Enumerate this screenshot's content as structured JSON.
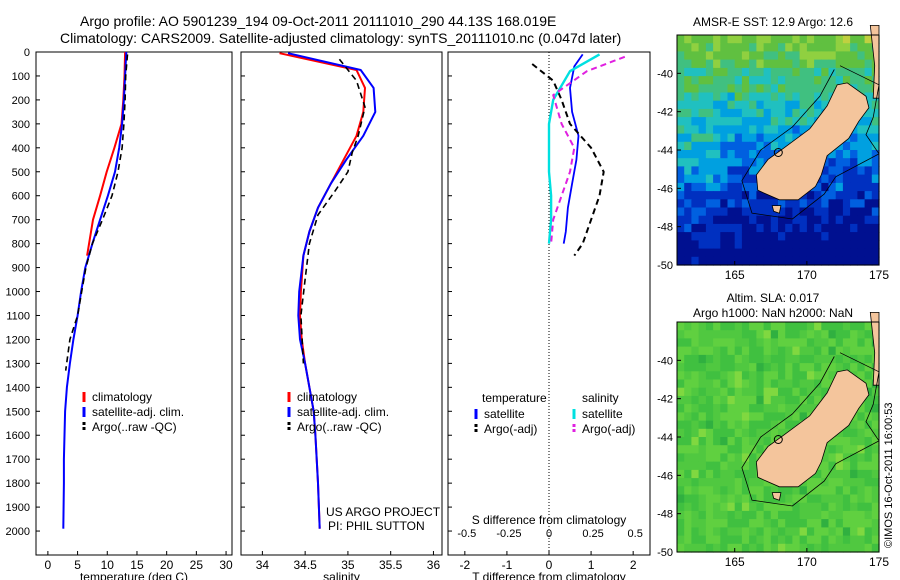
{
  "header": {
    "line1": "Argo profile: AO 5901239_194 09-Oct-2011 20111010_290 44.13S 168.019E",
    "line2": "Climatology: CARS2009. Satellite-adjusted climatology: synTS_20111010.nc (0.047d later)"
  },
  "colors": {
    "climatology": "#ff0000",
    "satellite": "#0000ff",
    "argo": "#000000",
    "sal_satellite": "#00e0e0",
    "sal_argo": "#e020e0",
    "land": "#f4c59c"
  },
  "credit": {
    "project": "US ARGO PROJECT",
    "pi": "PI: PHIL SUTTON",
    "vertical": "©IMOS 16-Oct-2011 16:00:53"
  },
  "chart_data": [
    {
      "type": "line",
      "xlabel": "temperature (deg C)",
      "xlim": [
        -2,
        31
      ],
      "xticks": [
        "0",
        "5",
        "10",
        "15",
        "20",
        "25",
        "30"
      ],
      "ylim": [
        0,
        2100
      ],
      "yticks": [
        "0",
        "100",
        "200",
        "300",
        "400",
        "500",
        "600",
        "700",
        "800",
        "900",
        "1000",
        "1100",
        "1200",
        "1300",
        "1400",
        "1500",
        "1600",
        "1700",
        "1800",
        "1900",
        "2000"
      ],
      "legend": [
        "climatology",
        "satellite-adj. clim.",
        "Argo(..raw -QC)"
      ],
      "series": [
        {
          "name": "climatology",
          "x": [
            13.0,
            12.9,
            12.7,
            12.4,
            11.2,
            9.9,
            8.8,
            7.6,
            6.6
          ],
          "y": [
            0,
            100,
            200,
            300,
            400,
            500,
            600,
            700,
            850
          ]
        },
        {
          "name": "satellite-adj. clim.",
          "x": [
            13.2,
            13.0,
            12.8,
            12.5,
            12.0,
            11.3,
            10.1,
            8.8,
            7.5,
            6.3,
            5.6,
            5.0,
            4.3,
            3.7,
            3.2,
            2.9,
            2.8,
            2.7,
            2.7,
            2.6
          ],
          "y": [
            0,
            100,
            200,
            300,
            400,
            500,
            600,
            700,
            800,
            900,
            1000,
            1100,
            1200,
            1300,
            1400,
            1500,
            1600,
            1700,
            1800,
            1990
          ]
        },
        {
          "name": "Argo(..raw -QC)",
          "x": [
            13.4,
            13.1,
            13.0,
            12.8,
            12.5,
            11.8,
            10.8,
            9.2,
            7.5,
            6.4,
            5.7,
            5.0,
            3.7,
            3.0
          ],
          "y": [
            10,
            100,
            200,
            300,
            400,
            500,
            600,
            700,
            800,
            900,
            1000,
            1100,
            1200,
            1330
          ]
        }
      ]
    },
    {
      "type": "line",
      "xlabel": "salinity",
      "xlim": [
        33.75,
        36.1
      ],
      "xticks": [
        "34",
        "34.5",
        "35",
        "35.5",
        "36"
      ],
      "ylim": [
        0,
        2100
      ],
      "legend": [
        "climatology",
        "satellite-adj. clim.",
        "Argo(..raw -QC)"
      ],
      "series": [
        {
          "name": "climatology",
          "x": [
            34.2,
            35.1,
            35.2,
            35.18,
            35.1,
            34.95,
            34.8,
            34.65,
            34.55,
            34.48,
            34.45,
            34.44,
            34.46,
            34.5,
            34.55,
            34.6,
            34.62,
            34.65,
            34.67
          ],
          "y": [
            5,
            75,
            150,
            250,
            350,
            450,
            550,
            650,
            750,
            850,
            1000,
            1100,
            1200,
            1300,
            1400,
            1500,
            1600,
            1800,
            1990
          ]
        },
        {
          "name": "satellite-adj. clim.",
          "x": [
            34.3,
            35.15,
            35.3,
            35.32,
            35.18,
            34.98,
            34.8,
            34.65,
            34.55,
            34.48,
            34.43,
            34.42,
            34.44,
            34.5,
            34.55,
            34.6,
            34.62,
            34.65,
            34.67
          ],
          "y": [
            5,
            75,
            150,
            250,
            350,
            450,
            550,
            650,
            750,
            850,
            1000,
            1100,
            1200,
            1300,
            1400,
            1500,
            1600,
            1800,
            1990
          ]
        },
        {
          "name": "Argo(..raw -QC)",
          "x": [
            34.9,
            35.1,
            35.2,
            35.12,
            35.05,
            35.0,
            34.85,
            34.65,
            34.55,
            34.5,
            34.45,
            34.48
          ],
          "y": [
            30,
            120,
            230,
            350,
            420,
            500,
            580,
            680,
            800,
            950,
            1100,
            1300
          ]
        }
      ]
    },
    {
      "type": "line",
      "xlabel": "T difference from climatology",
      "xlabel2": "S difference from climatology",
      "xlim": [
        -2.4,
        2.4
      ],
      "xticks": [
        "-2",
        "-1",
        "0",
        "1",
        "2"
      ],
      "xticks2": [
        "-0.5",
        "-0.25",
        "0",
        "0.25",
        "0.5"
      ],
      "ylim": [
        0,
        2100
      ],
      "legend_left_title": "temperature",
      "legend_right_title": "salinity",
      "legend_left": [
        "satellite",
        "Argo(-adj)"
      ],
      "legend_right": [
        "satellite",
        "Argo(-adj)"
      ],
      "series": [
        {
          "name": "temperature satellite",
          "x": [
            0.8,
            0.6,
            0.5,
            0.55,
            0.7,
            0.65,
            0.55,
            0.45,
            0.4,
            0.35
          ],
          "y": [
            10,
            60,
            150,
            250,
            350,
            450,
            550,
            650,
            750,
            800
          ]
        },
        {
          "name": "temperature Argo(-adj)",
          "x": [
            -0.4,
            0.1,
            0.3,
            0.5,
            1.0,
            1.3,
            1.2,
            1.0,
            0.8,
            0.6
          ],
          "y": [
            50,
            120,
            200,
            300,
            400,
            500,
            600,
            700,
            800,
            850
          ]
        },
        {
          "name": "salinity satellite",
          "x": [
            1.2,
            0.5,
            0.1,
            0.0,
            0.0,
            0.0,
            0.05,
            0.05,
            0.0
          ],
          "y": [
            10,
            80,
            200,
            300,
            400,
            500,
            600,
            700,
            800
          ]
        },
        {
          "name": "salinity Argo(-adj)",
          "x": [
            1.8,
            0.9,
            0.1,
            0.3,
            0.6,
            0.5,
            0.3,
            0.1,
            0.05
          ],
          "y": [
            20,
            80,
            180,
            300,
            400,
            500,
            600,
            700,
            800
          ]
        }
      ]
    },
    {
      "type": "heatmap",
      "title": "AMSR-E SST: 12.9 Argo: 12.6",
      "xlim": [
        161,
        175
      ],
      "xticks": [
        "165",
        "170",
        "175"
      ],
      "ylim": [
        -50,
        -38
      ],
      "yticks": [
        "-40",
        "-42",
        "-44",
        "-46",
        "-48",
        "-50"
      ]
    },
    {
      "type": "heatmap",
      "title": "Altim. SLA: 0.017",
      "subtitle": "Argo h1000: NaN h2000: NaN",
      "xlim": [
        161,
        175
      ],
      "xticks": [
        "165",
        "170",
        "175"
      ],
      "ylim": [
        -50,
        -38
      ],
      "yticks": [
        "-40",
        "-42",
        "-44",
        "-46",
        "-48",
        "-50"
      ]
    }
  ]
}
